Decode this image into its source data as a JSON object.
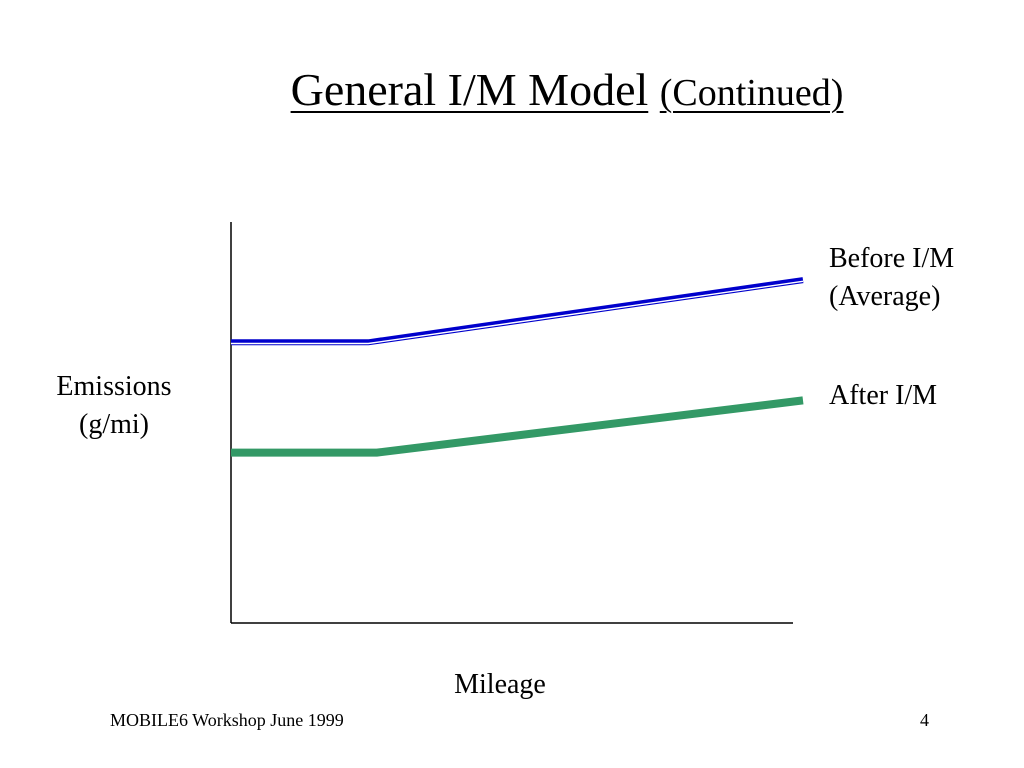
{
  "slide": {
    "title_main": "General I/M Model",
    "title_sub": "(Continued)",
    "footer_text": "MOBILE6 Workshop June 1999",
    "page_number": "4"
  },
  "chart_data": {
    "type": "line",
    "title": "General I/M Model (Continued)",
    "xlabel": "Mileage",
    "ylabel_line1": "Emissions",
    "ylabel_line2": "(g/mi)",
    "x_ticks": "none",
    "y_ticks": "none",
    "grid": false,
    "legend_placement": "right, labels beside line ends",
    "xlim": [
      0,
      1
    ],
    "ylim": [
      0,
      1
    ],
    "series": [
      {
        "name_line1": "Before I/M",
        "name_line2": "(Average)",
        "color": "#0000cc",
        "style": "double line",
        "x": [
          0,
          0.24,
          1.0
        ],
        "y": [
          0.7,
          0.7,
          0.855
        ]
      },
      {
        "name_line1": "After I/M",
        "name_line2": "",
        "color": "#339966",
        "style": "thick line",
        "x": [
          0,
          0.255,
          1.0
        ],
        "y": [
          0.425,
          0.425,
          0.555
        ]
      }
    ]
  }
}
